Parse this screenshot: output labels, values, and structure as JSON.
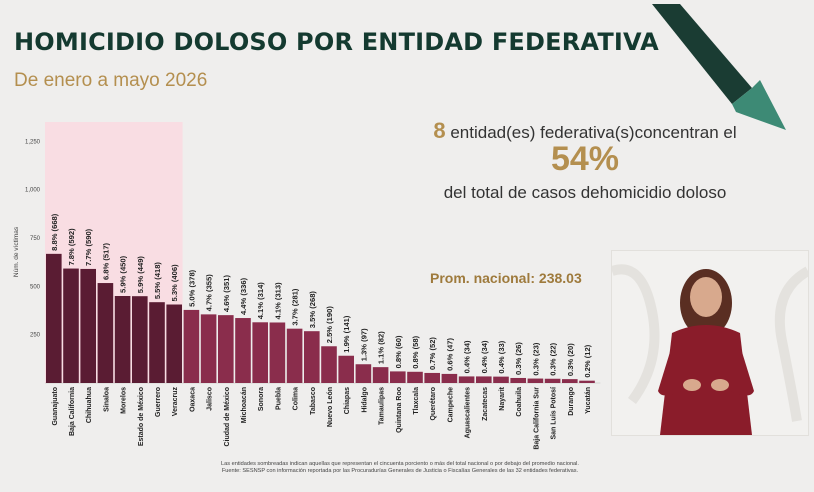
{
  "header": {
    "title": "HOMICIDIO DOLOSO POR ENTIDAD FEDERATIVA",
    "subtitle": "De enero a mayo 2026"
  },
  "summary": {
    "count": "8",
    "line1": "entidad(es) federativa(s)concentran el",
    "percent": "54%",
    "line3": "del total de casos dehomicidio doloso"
  },
  "national_average_label": "Prom. nacional: 238.03",
  "footnotes": [
    "Las entidades sombreadas indican aquellas que representan el cincuenta porciento o más del total nacional o por debajo del promedio nacional.",
    "Fuente: SESNSP con información reportada por las Procuradurías Generales de Justicia o Fiscalías Generales de las 32 entidades federativas."
  ],
  "colors": {
    "bar_dark": "#5a1c33",
    "bar": "#8a2d4c",
    "highlight": "#f9dde3",
    "title": "#143a30",
    "gold": "#b48f4f",
    "arrow_dark": "#1a3c33",
    "arrow_light": "#3d8a75"
  },
  "decor": {
    "arrow": "trend-down-arrow-icon"
  },
  "chart_data": {
    "type": "bar",
    "ylabel": "Núm. de víctimas",
    "yticks": [
      250,
      500,
      750,
      1000,
      1250
    ],
    "ylim": [
      0,
      1350
    ],
    "highlighted_count": 8,
    "categories": [
      "Guanajuato",
      "Baja California",
      "Chihuahua",
      "Sinaloa",
      "Morelos",
      "Estado de México",
      "Guerrero",
      "Veracruz",
      "Oaxaca",
      "Jalisco",
      "Ciudad de México",
      "Michoacán",
      "Sonora",
      "Puebla",
      "Colima",
      "Tabasco",
      "Nuevo León",
      "Chiapas",
      "Hidalgo",
      "Tamaulipas",
      "Quintana Roo",
      "Tlaxcala",
      "Querétaro",
      "Campeche",
      "Aguascalientes",
      "Zacatecas",
      "Nayarit",
      "Coahuila",
      "Baja California Sur",
      "San Luis Potosí",
      "Durango",
      "Yucatán"
    ],
    "values": [
      668,
      592,
      590,
      517,
      450,
      449,
      418,
      406,
      378,
      355,
      351,
      336,
      314,
      313,
      281,
      268,
      190,
      141,
      97,
      82,
      60,
      58,
      52,
      47,
      34,
      34,
      33,
      26,
      23,
      22,
      20,
      12
    ],
    "labels": [
      "8.8% (668)",
      "7.8% (592)",
      "7.7% (590)",
      "6.8% (517)",
      "5.9% (450)",
      "5.9% (449)",
      "5.5% (418)",
      "5.3% (406)",
      "5.0% (378)",
      "4.7% (355)",
      "4.6% (351)",
      "4.4% (336)",
      "4.1% (314)",
      "4.1% (313)",
      "3.7% (281)",
      "3.5% (268)",
      "2.5% (190)",
      "1.9% (141)",
      "1.3% (97)",
      "1.1% (82)",
      "0.8% (60)",
      "0.8% (58)",
      "0.7% (52)",
      "0.6% (47)",
      "0.4% (34)",
      "0.4% (34)",
      "0.4% (33)",
      "0.3% (26)",
      "0.3% (23)",
      "0.3% (22)",
      "0.3% (20)",
      "0.2% (12)"
    ]
  }
}
